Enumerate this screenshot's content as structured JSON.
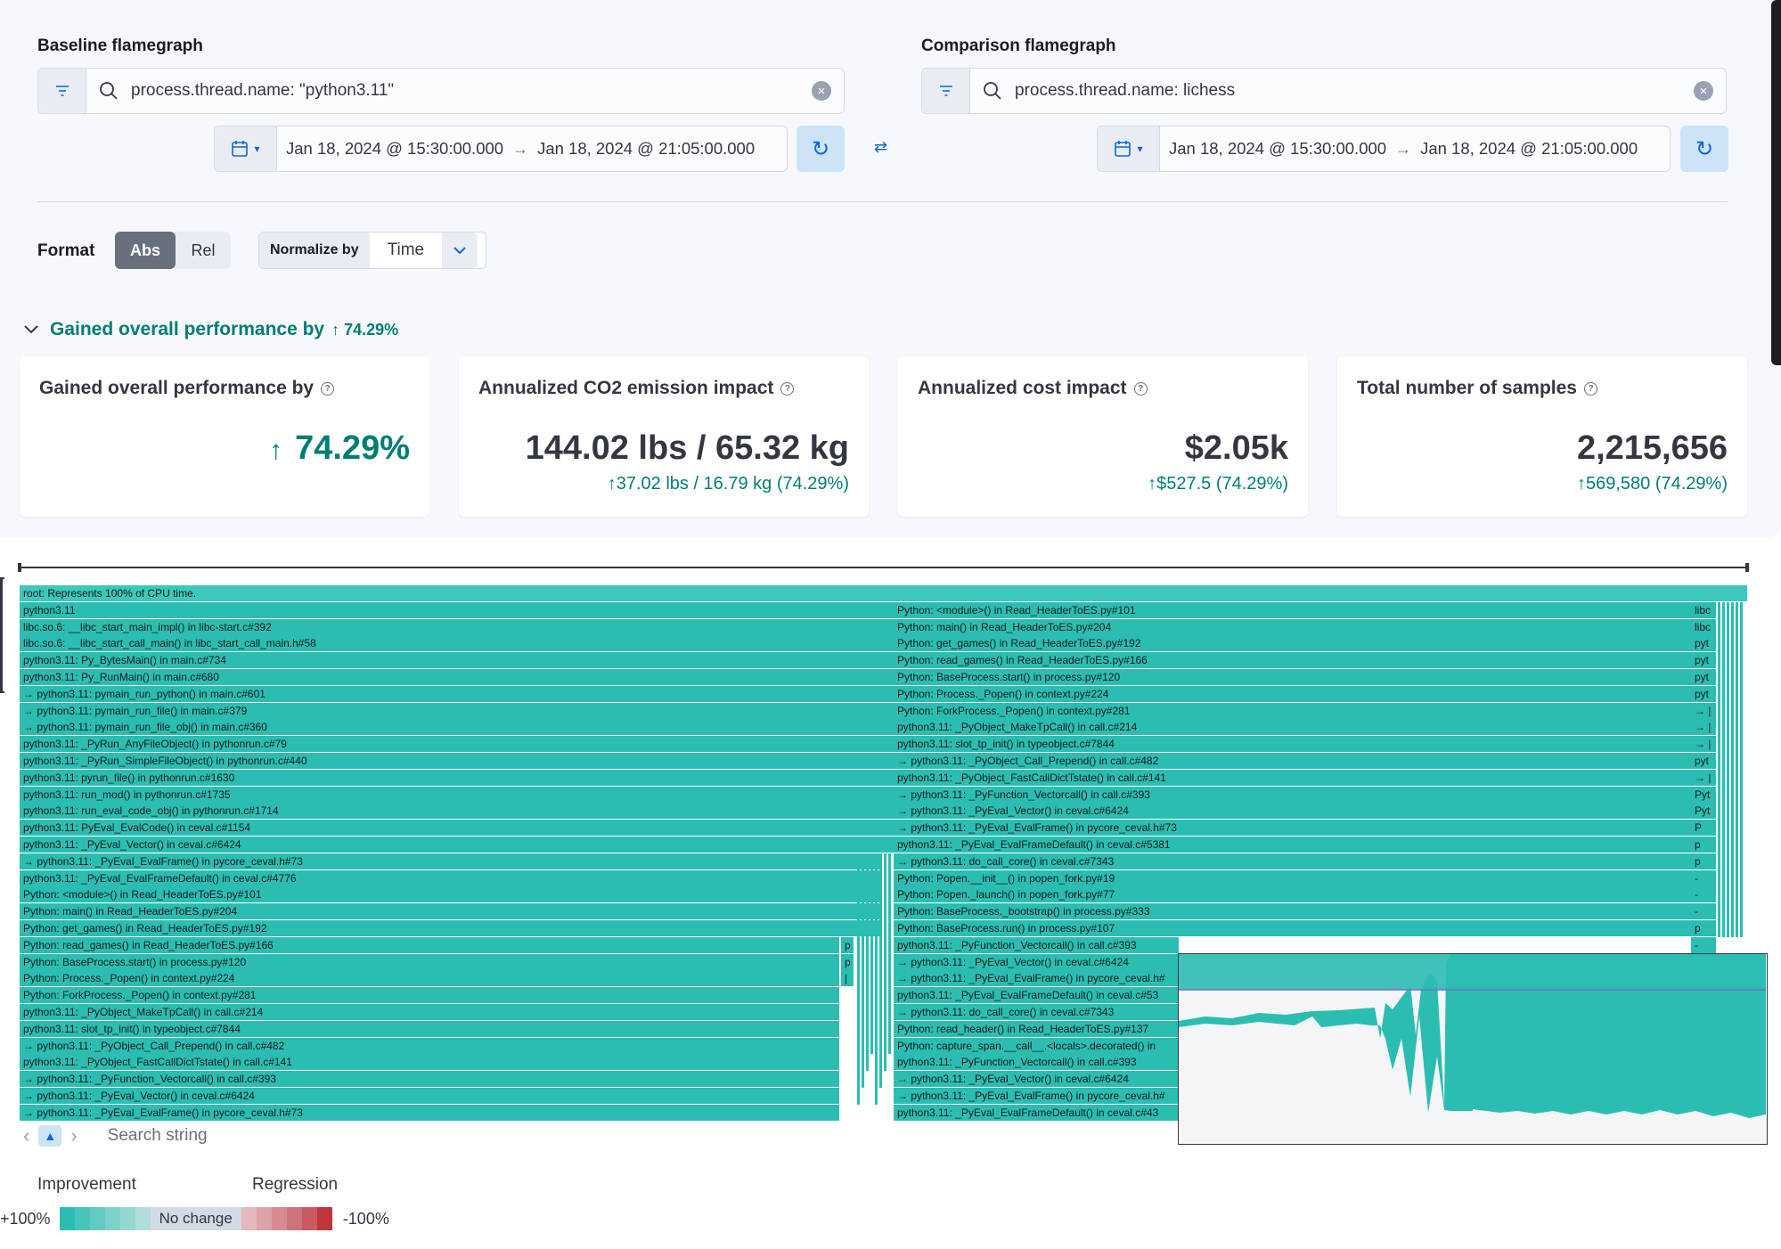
{
  "baseline": {
    "title": "Baseline flamegraph",
    "query": "process.thread.name: \"python3.11\"",
    "start": "Jan 18, 2024 @ 15:30:00.000",
    "end": "Jan 18, 2024 @ 21:05:00.000"
  },
  "comparison": {
    "title": "Comparison flamegraph",
    "query": "process.thread.name: lichess",
    "start": "Jan 18, 2024 @ 15:30:00.000",
    "end": "Jan 18, 2024 @ 21:05:00.000"
  },
  "format": {
    "label": "Format",
    "abs": "Abs",
    "rel": "Rel",
    "selected": "Abs"
  },
  "normalize": {
    "label": "Normalize by",
    "value": "Time"
  },
  "summary": {
    "toggle_label": "Gained overall performance by",
    "toggle_pct": "74.29%",
    "cards": [
      {
        "title": "Gained overall performance by",
        "value": "74.29%",
        "sub": ""
      },
      {
        "title": "Annualized CO2 emission impact",
        "value": "144.02 lbs / 65.32 kg",
        "sub": "37.02 lbs / 16.79 kg (74.29%)"
      },
      {
        "title": "Annualized cost impact",
        "value": "$2.05k",
        "sub": "$527.5 (74.29%)"
      },
      {
        "title": "Total number of samples",
        "value": "2,215,656",
        "sub": "569,580 (74.29%)"
      }
    ]
  },
  "flamegraph": {
    "root": "root: Represents 100% of CPU time.",
    "left": [
      "python3.11",
      "libc.so.6: __libc_start_main_impl() in libc-start.c#392",
      "libc.so.6: __libc_start_call_main() in libc_start_call_main.h#58",
      "python3.11: Py_BytesMain() in main.c#734",
      "python3.11: Py_RunMain() in main.c#680",
      "→ python3.11: pymain_run_python() in main.c#601",
      "→ python3.11: pymain_run_file() in main.c#379",
      "→ python3.11: pymain_run_file_obj() in main.c#360",
      "python3.11: _PyRun_AnyFileObject() in pythonrun.c#79",
      "python3.11: _PyRun_SimpleFileObject() in pythonrun.c#440",
      "python3.11: pyrun_file() in pythonrun.c#1630",
      "python3.11: run_mod() in pythonrun.c#1735",
      "python3.11: run_eval_code_obj() in pythonrun.c#1714",
      "python3.11: PyEval_EvalCode() in ceval.c#1154",
      "python3.11: _PyEval_Vector() in ceval.c#6424",
      "→ python3.11: _PyEval_EvalFrame() in pycore_ceval.h#73",
      "python3.11: _PyEval_EvalFrameDefault() in ceval.c#4776",
      "Python: <module>() in Read_HeaderToES.py#101",
      "Python: main() in Read_HeaderToES.py#204",
      "Python: get_games() in Read_HeaderToES.py#192",
      "Python: read_games() in Read_HeaderToES.py#166",
      "Python: BaseProcess.start() in process.py#120",
      "Python: Process._Popen() in context.py#224",
      "Python: ForkProcess._Popen() in context.py#281",
      "python3.11: _PyObject_MakeTpCall() in call.c#214",
      "python3.11: slot_tp_init() in typeobject.c#7844",
      "→ python3.11: _PyObject_Call_Prepend() in call.c#482",
      "python3.11: _PyObject_FastCallDictTstate() in call.c#141",
      "→ python3.11: _PyFunction_Vectorcall() in call.c#393",
      "→ python3.11: _PyEval_Vector() in ceval.c#6424",
      "→ python3.11: _PyEval_EvalFrame() in pycore_ceval.h#73"
    ],
    "right": [
      "Python: <module>() in Read_HeaderToES.py#101",
      "Python: main() in Read_HeaderToES.py#204",
      "Python: get_games() in Read_HeaderToES.py#192",
      "Python: read_games() in Read_HeaderToES.py#166",
      "Python: BaseProcess.start() in process.py#120",
      "Python: Process._Popen() in context.py#224",
      "Python: ForkProcess._Popen() in context.py#281",
      "python3.11: _PyObject_MakeTpCall() in call.c#214",
      "python3.11: slot_tp_init() in typeobject.c#7844",
      "→ python3.11: _PyObject_Call_Prepend() in call.c#482",
      "python3.11: _PyObject_FastCallDictTstate() in call.c#141",
      "→ python3.11: _PyFunction_Vectorcall() in call.c#393",
      "→ python3.11: _PyEval_Vector() in ceval.c#6424",
      "→ python3.11: _PyEval_EvalFrame() in pycore_ceval.h#73",
      "python3.11: _PyEval_EvalFrameDefault() in ceval.c#5381",
      "→ python3.11: do_call_core() in ceval.c#7343",
      "Python: Popen.__init__() in popen_fork.py#19",
      "Python: Popen._launch() in popen_fork.py#77",
      "Python: BaseProcess._bootstrap() in process.py#333",
      "Python: BaseProcess.run() in process.py#107",
      "python3.11: _PyFunction_Vectorcall() in call.c#393",
      "→ python3.11: _PyEval_Vector() in ceval.c#6424",
      "→ python3.11: _PyEval_EvalFrame() in pycore_ceval.h#",
      "python3.11: _PyEval_EvalFrameDefault() in ceval.c#53",
      "→ python3.11: do_call_core() in ceval.c#7343",
      "Python: read_header() in Read_HeaderToES.py#137",
      "Python: capture_span.__call__.<locals>.decorated() in",
      "python3.11: _PyFunction_Vectorcall() in call.c#393",
      "→ python3.11: _PyEval_Vector() in ceval.c#6424",
      "→ python3.11: _PyEval_EvalFrame() in pycore_ceval.h#",
      "python3.11: _PyEval_EvalFrameDefault() in ceval.c#43"
    ],
    "far_right": [
      "libc",
      "libc",
      "pyt",
      "pyt",
      "pyt",
      "pyt",
      "→ |",
      "→ |",
      "→ |",
      "pyt",
      "→ |",
      "Pyt",
      "Pyt",
      "P",
      "p",
      "p",
      "-",
      "-",
      "-",
      "p",
      "-"
    ],
    "tiny": [
      "p",
      "p",
      "|"
    ],
    "search_placeholder": "Search string"
  },
  "legend": {
    "improvement": "Improvement",
    "regression": "Regression",
    "plus": "+100%",
    "no_change": "No change",
    "minus": "-100%",
    "improvement_colors": [
      "#2cbdb2",
      "#45c4b9",
      "#60cbc1",
      "#7ad2c9",
      "#94d9d1",
      "#b1ddda"
    ],
    "regression_colors": [
      "#e3b9bd",
      "#dca3a8",
      "#d68b91",
      "#cf737a",
      "#c95a61",
      "#c0353c"
    ]
  }
}
